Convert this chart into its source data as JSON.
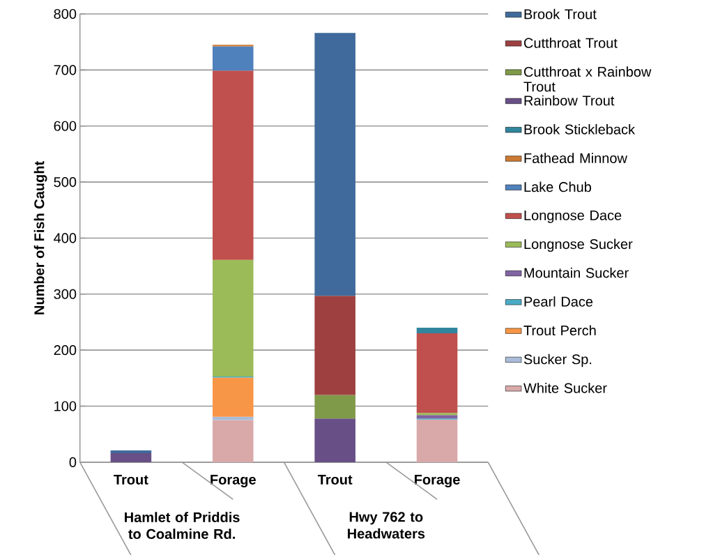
{
  "chart_data": {
    "type": "bar",
    "stacked": true,
    "ylabel": "Number of Fish Caught",
    "categories": [
      "Trout",
      "Forage",
      "Trout",
      "Forage"
    ],
    "annotations": [
      "Hamlet of Priddis to Coalmine Rd.",
      "Hwy 762 to Headwaters"
    ],
    "ylim": [
      0,
      800
    ],
    "yticks": [
      0,
      100,
      200,
      300,
      400,
      500,
      600,
      700,
      800
    ],
    "grid": "y",
    "legend": "right",
    "series": [
      {
        "name": "White Sucker",
        "color": "#d9a9a9",
        "values": [
          null,
          75,
          null,
          76
        ]
      },
      {
        "name": "Sucker Sp.",
        "color": "#a9bcd9",
        "values": [
          null,
          6,
          null,
          null
        ]
      },
      {
        "name": "Trout Perch",
        "color": "#f79646",
        "values": [
          null,
          70,
          null,
          null
        ]
      },
      {
        "name": "Pearl Dace",
        "color": "#4bacc6",
        "values": [
          null,
          2,
          null,
          2
        ]
      },
      {
        "name": "Mountain Sucker",
        "color": "#8064a2",
        "values": [
          null,
          null,
          null,
          6
        ]
      },
      {
        "name": "Longnose Sucker",
        "color": "#9bbb59",
        "values": [
          null,
          208,
          null,
          4
        ]
      },
      {
        "name": "Longnose Dace",
        "color": "#c0504d",
        "values": [
          null,
          338,
          null,
          142
        ]
      },
      {
        "name": "Lake Chub",
        "color": "#4f81bd",
        "values": [
          null,
          43,
          null,
          null
        ]
      },
      {
        "name": "Fathead Minnow",
        "color": "#cc7a33",
        "values": [
          null,
          3,
          null,
          null
        ]
      },
      {
        "name": "Brook Stickleback",
        "color": "#31859c",
        "values": [
          null,
          null,
          null,
          10
        ]
      },
      {
        "name": "Rainbow Trout",
        "color": "#684f86",
        "values": [
          16,
          null,
          78,
          null
        ]
      },
      {
        "name": "Cutthroat x Rainbow Trout",
        "color": "#7f9a48",
        "values": [
          null,
          null,
          42,
          null
        ]
      },
      {
        "name": "Cutthroat Trout",
        "color": "#9e4040",
        "values": [
          null,
          null,
          177,
          null
        ]
      },
      {
        "name": "Brook Trout",
        "color": "#3f6a9b",
        "values": [
          5,
          null,
          469,
          null
        ]
      }
    ]
  }
}
